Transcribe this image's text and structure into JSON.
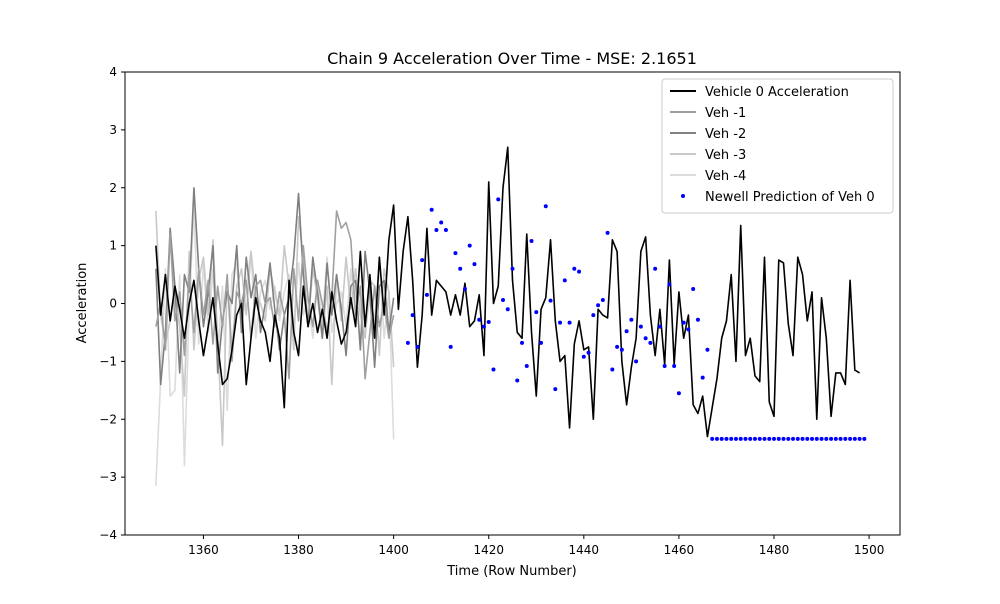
{
  "chart_data": {
    "type": "line",
    "title": "Chain 9 Acceleration Over Time - MSE: 2.1651",
    "xlabel": "Time (Row Number)",
    "ylabel": "Acceleration",
    "xlim": [
      1343.5,
      1506.5
    ],
    "ylim": [
      -4,
      4
    ],
    "xticks": [
      1360,
      1380,
      1400,
      1420,
      1440,
      1460,
      1480,
      1500
    ],
    "yticks": [
      -4,
      -3,
      -2,
      -1,
      0,
      1,
      2,
      3,
      4
    ],
    "ytick_labels": [
      "−4",
      "−3",
      "−2",
      "−1",
      "0",
      "1",
      "2",
      "3",
      "4"
    ],
    "legend_position": "top-right",
    "grid": false,
    "series": [
      {
        "name": "Vehicle 0 Acceleration",
        "color": "#000000",
        "kind": "line",
        "x_start": 1350,
        "values": [
          1.0,
          -0.2,
          0.5,
          -0.3,
          0.3,
          -0.1,
          -0.6,
          0.0,
          0.4,
          -0.3,
          -0.9,
          -0.4,
          0.1,
          -0.7,
          -1.4,
          -1.3,
          -0.8,
          -0.2,
          0.0,
          -1.4,
          -0.6,
          0.1,
          -0.3,
          -0.5,
          -1.0,
          -0.2,
          -0.6,
          -1.8,
          0.4,
          -0.5,
          -0.9,
          0.3,
          -0.4,
          0.0,
          -0.5,
          -0.1,
          -0.6,
          0.2,
          -0.3,
          -0.7,
          -0.5,
          0.1,
          -0.4,
          0.9,
          -0.4,
          0.5,
          -0.6,
          0.8,
          -0.2,
          1.1,
          1.7,
          -0.1,
          0.9,
          1.5,
          0.4,
          -1.1,
          -0.2,
          1.3,
          -0.2,
          0.4,
          0.3,
          0.2,
          -0.2,
          0.15,
          -0.2,
          0.35,
          -0.4,
          -0.3,
          0.15,
          -0.9,
          2.1,
          0.0,
          0.3,
          2.0,
          2.7,
          0.4,
          -0.5,
          -0.6,
          1.2,
          -0.5,
          -1.6,
          -0.1,
          0.1,
          1.1,
          -0.3,
          -1.0,
          -0.9,
          -2.15,
          -0.7,
          -0.3,
          -0.8,
          -0.75,
          -2.0,
          -0.1,
          -0.2,
          -0.25,
          1.1,
          0.9,
          -1.0,
          -1.75,
          -1.1,
          -0.6,
          0.9,
          1.15,
          -0.2,
          -0.9,
          -0.1,
          -1.05,
          0.75,
          -1.05,
          0.2,
          -0.6,
          -0.2,
          -1.75,
          -1.9,
          -1.6,
          -2.3,
          -1.8,
          -1.3,
          -0.6,
          -0.3,
          0.5,
          -1.0,
          1.35,
          -0.9,
          -0.6,
          -1.25,
          -1.35,
          0.8,
          -1.7,
          -1.95,
          0.75,
          0.7,
          -0.35,
          -0.9,
          0.8,
          0.5,
          -0.3,
          0.2,
          -2.0,
          0.1,
          -0.6,
          -1.95,
          -1.2,
          -1.2,
          -1.4,
          0.4,
          -1.15,
          -1.2
        ]
      },
      {
        "name": "Veh -1",
        "color": "#a0a0a0",
        "kind": "line",
        "x_start": 1350,
        "values": [
          -0.4,
          0.0,
          -0.8,
          1.2,
          -0.3,
          0.2,
          -0.9,
          0.5,
          -0.5,
          0.6,
          -0.2,
          0.4,
          -0.7,
          0.3,
          -0.4,
          0.5,
          -1.0,
          0.2,
          0.0,
          0.4,
          -0.6,
          0.3,
          0.4,
          0.0,
          0.1,
          -0.4,
          0.2,
          -0.2,
          -1.3,
          0.6,
          -0.3,
          1.0,
          0.1,
          -0.4,
          0.4,
          0.0,
          -0.5,
          0.1,
          1.6,
          1.3,
          1.4,
          1.1,
          -0.2,
          0.3,
          -1.3,
          -0.5,
          0.3,
          -0.4,
          0.0,
          -0.6,
          -0.2
        ]
      },
      {
        "name": "Veh -2",
        "color": "#808080",
        "kind": "line",
        "x_start": 1350,
        "values": [
          0.6,
          -1.4,
          -0.5,
          1.3,
          0.3,
          -1.2,
          0.5,
          0.2,
          2.0,
          0.6,
          -0.4,
          0.2,
          1.0,
          -1.2,
          -0.3,
          0.2,
          0.0,
          1.0,
          -0.5,
          0.8,
          0.1,
          0.5,
          -0.5,
          0.0,
          0.7,
          -0.1,
          -0.8,
          -0.2,
          0.1,
          0.8,
          1.9,
          0.5,
          -0.4,
          0.8,
          0.2,
          -0.6,
          0.7,
          -0.2,
          0.5,
          -0.1,
          -0.9,
          0.3,
          0.4,
          -0.8,
          0.9,
          0.2,
          -1.1,
          0.3,
          0.4,
          -0.5,
          0.1
        ]
      },
      {
        "name": "Veh -3",
        "color": "#c8c8c8",
        "kind": "line",
        "x_start": 1350,
        "values": [
          1.6,
          -0.2,
          -0.7,
          -0.3,
          0.3,
          -0.4,
          -1.6,
          0.9,
          -0.8,
          0.4,
          0.8,
          -0.2,
          1.1,
          -0.6,
          -2.45,
          0.4,
          -0.8,
          0.3,
          0.6,
          -0.2,
          0.9,
          0.1,
          0.0,
          -0.3,
          0.6,
          0.2,
          -0.2,
          1.0,
          0.3,
          -0.8,
          1.5,
          0.8,
          -0.4,
          0.6,
          0.1,
          -0.6,
          0.3,
          -1.4,
          0.5,
          -0.3,
          0.8,
          -0.1,
          0.6,
          -0.2,
          -0.6,
          0.4,
          0.3,
          -0.9,
          0.6,
          0.2,
          -1.1
        ]
      },
      {
        "name": "Veh -4",
        "color": "#dcdcdc",
        "kind": "line",
        "x_start": 1350,
        "values": [
          -3.15,
          -1.3,
          0.6,
          -1.6,
          -1.5,
          0.5,
          -2.8,
          -0.1,
          1.7,
          -0.7,
          0.7,
          -0.5,
          0.6,
          -0.9,
          0.3,
          -1.85,
          0.5,
          0.7,
          -0.5,
          0.3,
          0.9,
          -0.6,
          0.2,
          0.4,
          -0.1,
          0.3,
          -0.3,
          0.2,
          0.5,
          -0.4,
          0.7,
          -0.2,
          0.1,
          -0.6,
          0.4,
          -0.3,
          0.8,
          -0.5,
          0.0,
          0.2,
          -0.4,
          0.6,
          -0.2,
          0.3,
          -0.5,
          0.1,
          -0.3,
          0.7,
          -0.6,
          0.2,
          -2.35
        ]
      },
      {
        "name": "Newell Prediction of Veh 0",
        "color": "#0000ff",
        "kind": "points",
        "x_start": 1403,
        "values": [
          -0.68,
          -0.2,
          -0.75,
          0.75,
          0.15,
          1.62,
          1.27,
          1.4,
          1.27,
          -0.75,
          0.87,
          0.6,
          0.25,
          1.0,
          0.68,
          -0.28,
          -0.4,
          -0.32,
          -1.14,
          1.8,
          0.06,
          -0.1,
          0.6,
          -1.33,
          -0.68,
          -1.08,
          1.08,
          -0.15,
          -0.68,
          1.68,
          0.05,
          -1.48,
          -0.33,
          0.4,
          -0.33,
          0.6,
          0.55,
          -0.92,
          -0.85,
          -0.2,
          -0.03,
          0.06,
          1.22,
          -1.14,
          -0.75,
          -0.8,
          -0.48,
          -0.28,
          -1.0,
          -0.4,
          -0.6,
          -0.68,
          0.6,
          -0.4,
          -1.08,
          0.33,
          -1.08,
          -1.55,
          -0.33,
          -0.45,
          0.25,
          -0.28,
          -1.28,
          -0.8,
          -2.34,
          -2.34,
          -2.34,
          -2.34,
          -2.34,
          -2.34,
          -2.34,
          -2.34,
          -2.34,
          -2.34,
          -2.34,
          -2.34,
          -2.34,
          -2.34,
          -2.34,
          -2.34,
          -2.34,
          -2.34,
          -2.34,
          -2.34,
          -2.34,
          -2.34,
          -2.34,
          -2.34,
          -2.34,
          -2.34,
          -2.34,
          -2.34,
          -2.34,
          -2.34,
          -2.34,
          -2.34,
          -2.34
        ]
      }
    ]
  }
}
